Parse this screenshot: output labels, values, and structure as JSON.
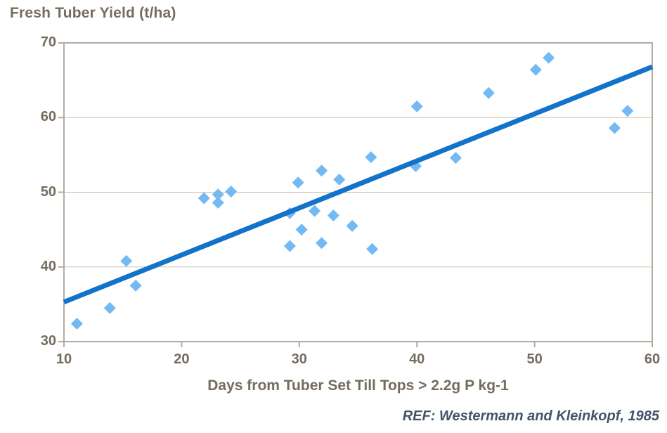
{
  "colors": {
    "marker": "#73B9F4",
    "trendline": "#1273C8",
    "axis_text": "#756C5F",
    "grid": "#C9C2B7",
    "border": "#B3AB9F",
    "annotation": "#44546A",
    "background": "#FFFFFF"
  },
  "chart_data": {
    "type": "scatter",
    "title": "Fresh Tuber Yield (t/ha)",
    "xlabel": "Days from Tuber Set Till Tops > 2.2g P kg-1",
    "ylabel": "Fresh Tuber Yield (t/ha)",
    "annotation": "REF: Westermann and Kleinkopf, 1985",
    "xlim": [
      10,
      60
    ],
    "ylim": [
      30,
      70
    ],
    "x_ticks": [
      10,
      20,
      30,
      40,
      50,
      60
    ],
    "y_ticks": [
      30,
      40,
      50,
      60,
      70
    ],
    "grid": "horizontal",
    "legend": "none",
    "marker": "diamond",
    "points": [
      [
        11.1,
        32.4
      ],
      [
        13.9,
        34.5
      ],
      [
        15.3,
        40.8
      ],
      [
        16.1,
        37.5
      ],
      [
        21.9,
        49.2
      ],
      [
        23.1,
        49.7
      ],
      [
        23.1,
        48.6
      ],
      [
        24.2,
        50.1
      ],
      [
        29.2,
        47.2
      ],
      [
        29.2,
        42.8
      ],
      [
        29.9,
        51.3
      ],
      [
        30.2,
        45.0
      ],
      [
        31.3,
        47.5
      ],
      [
        31.9,
        52.9
      ],
      [
        31.9,
        43.2
      ],
      [
        32.9,
        46.9
      ],
      [
        33.4,
        51.7
      ],
      [
        34.5,
        45.5
      ],
      [
        36.1,
        54.7
      ],
      [
        36.2,
        42.4
      ],
      [
        39.9,
        53.5
      ],
      [
        40.0,
        61.5
      ],
      [
        43.3,
        54.6
      ],
      [
        46.1,
        63.3
      ],
      [
        50.1,
        66.4
      ],
      [
        51.2,
        68.0
      ],
      [
        56.8,
        58.6
      ],
      [
        57.9,
        60.9
      ]
    ],
    "trendline": {
      "x1": 10,
      "y1": 35.3,
      "x2": 60,
      "y2": 66.8
    }
  }
}
